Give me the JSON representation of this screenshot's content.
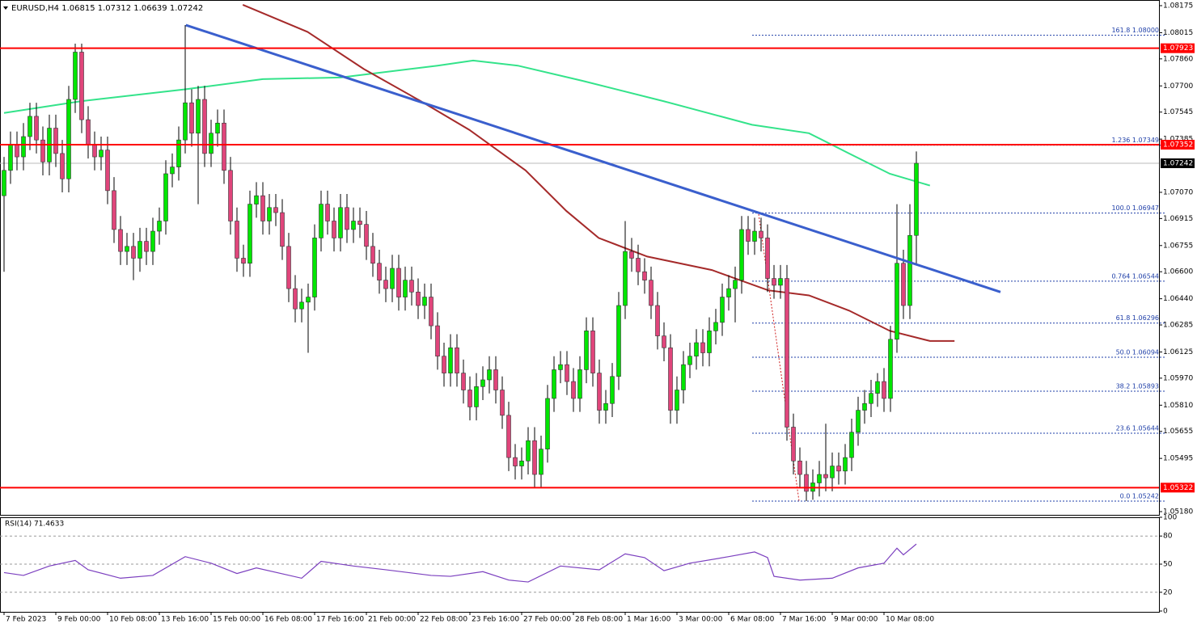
{
  "chart_data": [
    {
      "type": "candlestick",
      "title": "EURUSD,H4",
      "bull_color": "#00e600",
      "bear_color": "#e0457b",
      "wick_color": "#000000",
      "xlim": [
        -0.625,
        178.5
      ],
      "ylim": [
        1.0518,
        1.08175
      ],
      "yticks": [
        1.08175,
        1.08015,
        {
          "value": 1.0786,
          "label": "1.07860"
        },
        {
          "value": 1.077,
          "label": "1.07700"
        },
        1.07545,
        1.07385,
        {
          "value": 1.0707,
          "label": "1.07070"
        },
        1.06915,
        1.06755,
        {
          "value": 1.066,
          "label": "1.06600"
        },
        {
          "value": 1.0644,
          "label": "1.06440"
        },
        1.06285,
        1.06125,
        {
          "value": 1.0597,
          "label": "1.05970"
        },
        {
          "value": 1.0581,
          "label": "1.05810"
        },
        1.05655,
        1.05495,
        {
          "value": 1.0518,
          "label": "1.05180"
        }
      ],
      "xticks": [
        {
          "value": 0,
          "label": "7 Feb 2023"
        },
        {
          "value": 8,
          "label": "9 Feb 00:00"
        },
        {
          "value": 16,
          "label": "10 Feb 08:00"
        },
        {
          "value": 24,
          "label": "13 Feb 16:00"
        },
        {
          "value": 32,
          "label": "15 Feb 00:00"
        },
        {
          "value": 40,
          "label": "16 Feb 08:00"
        },
        {
          "value": 48,
          "label": "17 Feb 16:00"
        },
        {
          "value": 56,
          "label": "21 Feb 00:00"
        },
        {
          "value": 64,
          "label": "22 Feb 08:00"
        },
        {
          "value": 72,
          "label": "23 Feb 16:00"
        },
        {
          "value": 80,
          "label": "27 Feb 00:00"
        },
        {
          "value": 88,
          "label": "28 Feb 08:00"
        },
        {
          "value": 96,
          "label": "1 Mar 16:00"
        },
        {
          "value": 104,
          "label": "3 Mar 00:00"
        },
        {
          "value": 112,
          "label": "6 Mar 08:00"
        },
        {
          "value": 120,
          "label": "7 Mar 16:00"
        },
        {
          "value": 128,
          "label": "9 Mar 00:00"
        },
        {
          "value": 136,
          "label": "10 Mar 08:00"
        }
      ],
      "candles": [
        [
          1.0705,
          1.0728,
          1.066,
          1.072
        ],
        [
          1.072,
          1.0743,
          1.0712,
          1.0735
        ],
        [
          1.0735,
          1.0743,
          1.072,
          1.0728
        ],
        [
          1.0728,
          1.0748,
          1.072,
          1.074
        ],
        [
          1.074,
          1.076,
          1.0732,
          1.0752
        ],
        [
          1.0752,
          1.076,
          1.073,
          1.0738
        ],
        [
          1.0738,
          1.0746,
          1.0717,
          1.0725
        ],
        [
          1.0725,
          1.0753,
          1.0717,
          1.0745
        ],
        [
          1.0745,
          1.0753,
          1.0722,
          1.073
        ],
        [
          1.073,
          1.0738,
          1.0707,
          1.0715
        ],
        [
          1.0715,
          1.077,
          1.0707,
          1.0762
        ],
        [
          1.0762,
          1.0795,
          1.0754,
          1.079
        ],
        [
          1.079,
          1.0795,
          1.0742,
          1.075
        ],
        [
          1.075,
          1.0758,
          1.0727,
          1.0735
        ],
        [
          1.0735,
          1.0743,
          1.072,
          1.0728
        ],
        [
          1.0728,
          1.074,
          1.072,
          1.0732
        ],
        [
          1.0732,
          1.074,
          1.07,
          1.0708
        ],
        [
          1.0708,
          1.0716,
          1.0677,
          1.0685
        ],
        [
          1.0685,
          1.0693,
          1.0664,
          1.0672
        ],
        [
          1.0672,
          1.0683,
          1.0664,
          1.0675
        ],
        [
          1.0675,
          1.0683,
          1.0655,
          1.0668
        ],
        [
          1.0668,
          1.0686,
          1.066,
          1.0678
        ],
        [
          1.0678,
          1.0686,
          1.0664,
          1.0672
        ],
        [
          1.0672,
          1.0692,
          1.0664,
          1.0684
        ],
        [
          1.0684,
          1.0698,
          1.0676,
          1.069
        ],
        [
          1.069,
          1.0726,
          1.0682,
          1.0718
        ],
        [
          1.0718,
          1.073,
          1.071,
          1.0722
        ],
        [
          1.0722,
          1.0746,
          1.0714,
          1.0738
        ],
        [
          1.0738,
          1.0806,
          1.073,
          1.076
        ],
        [
          1.076,
          1.0768,
          1.0734,
          1.0742
        ],
        [
          1.0742,
          1.077,
          1.07,
          1.0762
        ],
        [
          1.0762,
          1.077,
          1.0722,
          1.073
        ],
        [
          1.073,
          1.075,
          1.0722,
          1.0742
        ],
        [
          1.0742,
          1.0756,
          1.0734,
          1.0748
        ],
        [
          1.0748,
          1.0756,
          1.0712,
          1.072
        ],
        [
          1.072,
          1.0728,
          1.0682,
          1.069
        ],
        [
          1.069,
          1.0698,
          1.066,
          1.0668
        ],
        [
          1.0668,
          1.0676,
          1.0657,
          1.0665
        ],
        [
          1.0665,
          1.0708,
          1.0657,
          1.07
        ],
        [
          1.07,
          1.0713,
          1.0692,
          1.0705
        ],
        [
          1.0705,
          1.0713,
          1.0682,
          1.069
        ],
        [
          1.069,
          1.0706,
          1.0682,
          1.0698
        ],
        [
          1.0698,
          1.0706,
          1.0687,
          1.0695
        ],
        [
          1.0695,
          1.0703,
          1.0667,
          1.0675
        ],
        [
          1.0675,
          1.0683,
          1.0642,
          1.065
        ],
        [
          1.065,
          1.0658,
          1.063,
          1.0638
        ],
        [
          1.0638,
          1.065,
          1.063,
          1.0642
        ],
        [
          1.0642,
          1.0653,
          1.0612,
          1.0645
        ],
        [
          1.0645,
          1.0688,
          1.0637,
          1.068
        ],
        [
          1.068,
          1.0708,
          1.0672,
          1.07
        ],
        [
          1.07,
          1.0708,
          1.0682,
          1.069
        ],
        [
          1.069,
          1.0698,
          1.0672,
          1.068
        ],
        [
          1.068,
          1.0706,
          1.0672,
          1.0698
        ],
        [
          1.0698,
          1.0706,
          1.0677,
          1.0685
        ],
        [
          1.0685,
          1.0698,
          1.0677,
          1.069
        ],
        [
          1.069,
          1.0698,
          1.068,
          1.0688
        ],
        [
          1.0688,
          1.0696,
          1.0667,
          1.0675
        ],
        [
          1.0675,
          1.0683,
          1.0657,
          1.0665
        ],
        [
          1.0665,
          1.0673,
          1.0647,
          1.0655
        ],
        [
          1.0655,
          1.0663,
          1.0642,
          1.065
        ],
        [
          1.065,
          1.067,
          1.0642,
          1.0662
        ],
        [
          1.0662,
          1.067,
          1.0637,
          1.0645
        ],
        [
          1.0645,
          1.0663,
          1.0637,
          1.0655
        ],
        [
          1.0655,
          1.0663,
          1.064,
          1.0648
        ],
        [
          1.0648,
          1.0656,
          1.0632,
          1.064
        ],
        [
          1.064,
          1.0653,
          1.0632,
          1.0645
        ],
        [
          1.0645,
          1.0653,
          1.062,
          1.0628
        ],
        [
          1.0628,
          1.0636,
          1.0602,
          1.061
        ],
        [
          1.061,
          1.0618,
          1.0592,
          1.06
        ],
        [
          1.06,
          1.0623,
          1.0592,
          1.0615
        ],
        [
          1.0615,
          1.0623,
          1.0592,
          1.06
        ],
        [
          1.06,
          1.0608,
          1.0582,
          1.059
        ],
        [
          1.059,
          1.0598,
          1.0572,
          1.058
        ],
        [
          1.058,
          1.06,
          1.0572,
          1.0592
        ],
        [
          1.0592,
          1.0604,
          1.0584,
          1.0596
        ],
        [
          1.0596,
          1.061,
          1.0588,
          1.0602
        ],
        [
          1.0602,
          1.061,
          1.0582,
          1.059
        ],
        [
          1.059,
          1.0598,
          1.0567,
          1.0575
        ],
        [
          1.0575,
          1.0583,
          1.0542,
          1.055
        ],
        [
          1.055,
          1.0558,
          1.0537,
          1.0545
        ],
        [
          1.0545,
          1.0556,
          1.0537,
          1.0548
        ],
        [
          1.0548,
          1.0568,
          1.054,
          1.056
        ],
        [
          1.056,
          1.0568,
          1.0532,
          1.054
        ],
        [
          1.054,
          1.0563,
          1.0532,
          1.0555
        ],
        [
          1.0555,
          1.0593,
          1.0547,
          1.0585
        ],
        [
          1.0585,
          1.061,
          1.0577,
          1.0602
        ],
        [
          1.0602,
          1.0613,
          1.0594,
          1.0605
        ],
        [
          1.0605,
          1.0613,
          1.0587,
          1.0595
        ],
        [
          1.0595,
          1.0603,
          1.0577,
          1.0585
        ],
        [
          1.0585,
          1.061,
          1.0577,
          1.0602
        ],
        [
          1.0602,
          1.0633,
          1.0594,
          1.0625
        ],
        [
          1.0625,
          1.0633,
          1.0592,
          1.06
        ],
        [
          1.06,
          1.0608,
          1.057,
          1.0578
        ],
        [
          1.0578,
          1.059,
          1.057,
          1.0582
        ],
        [
          1.0582,
          1.0606,
          1.0574,
          1.0598
        ],
        [
          1.0598,
          1.0648,
          1.059,
          1.064
        ],
        [
          1.064,
          1.069,
          1.0632,
          1.0672
        ],
        [
          1.0672,
          1.068,
          1.066,
          1.0668
        ],
        [
          1.0668,
          1.0676,
          1.0652,
          1.066
        ],
        [
          1.066,
          1.0668,
          1.0647,
          1.0655
        ],
        [
          1.0655,
          1.0663,
          1.0632,
          1.064
        ],
        [
          1.064,
          1.0648,
          1.0614,
          1.0622
        ],
        [
          1.0622,
          1.063,
          1.0607,
          1.0615
        ],
        [
          1.0615,
          1.0623,
          1.057,
          1.0578
        ],
        [
          1.0578,
          1.0598,
          1.057,
          1.059
        ],
        [
          1.059,
          1.0613,
          1.0582,
          1.0605
        ],
        [
          1.0605,
          1.0618,
          1.0597,
          1.061
        ],
        [
          1.061,
          1.0626,
          1.0602,
          1.0618
        ],
        [
          1.0618,
          1.0626,
          1.0604,
          1.0612
        ],
        [
          1.0612,
          1.0633,
          1.0604,
          1.0625
        ],
        [
          1.0625,
          1.0638,
          1.0617,
          1.063
        ],
        [
          1.063,
          1.0653,
          1.0622,
          1.0645
        ],
        [
          1.0645,
          1.0658,
          1.0637,
          1.065
        ],
        [
          1.065,
          1.0663,
          1.063,
          1.0655
        ],
        [
          1.0655,
          1.0693,
          1.0647,
          1.0685
        ],
        [
          1.0685,
          1.0693,
          1.067,
          1.0678
        ],
        [
          1.0678,
          1.0692,
          1.067,
          1.0684
        ],
        [
          1.0684,
          1.0692,
          1.0672,
          1.068
        ],
        [
          1.068,
          1.0688,
          1.0648,
          1.0656
        ],
        [
          1.0656,
          1.0664,
          1.0644,
          1.0652
        ],
        [
          1.0652,
          1.0664,
          1.0644,
          1.0656
        ],
        [
          1.0656,
          1.0664,
          1.056,
          1.0568
        ],
        [
          1.0568,
          1.0576,
          1.054,
          1.0548
        ],
        [
          1.0548,
          1.0556,
          1.0532,
          1.054
        ],
        [
          1.054,
          1.0548,
          1.05242,
          1.053
        ],
        [
          1.053,
          1.0543,
          1.0525,
          1.0535
        ],
        [
          1.0535,
          1.0548,
          1.0527,
          1.054
        ],
        [
          1.054,
          1.057,
          1.053,
          1.0538
        ],
        [
          1.0538,
          1.0553,
          1.053,
          1.0545
        ],
        [
          1.0545,
          1.0553,
          1.0534,
          1.0542
        ],
        [
          1.0542,
          1.0558,
          1.0534,
          1.055
        ],
        [
          1.055,
          1.0573,
          1.0542,
          1.0565
        ],
        [
          1.0565,
          1.0586,
          1.0557,
          1.0578
        ],
        [
          1.0578,
          1.059,
          1.057,
          1.0582
        ],
        [
          1.0582,
          1.0596,
          1.0574,
          1.0588
        ],
        [
          1.0588,
          1.06,
          1.058,
          1.0595
        ],
        [
          1.0595,
          1.0603,
          1.0577,
          1.0585
        ],
        [
          1.0585,
          1.0628,
          1.0577,
          1.062
        ],
        [
          1.062,
          1.07,
          1.0612,
          1.0665
        ],
        [
          1.0665,
          1.0673,
          1.0632,
          1.064
        ],
        [
          1.064,
          1.07,
          1.0632,
          1.06815
        ],
        [
          1.06815,
          1.07312,
          1.06639,
          1.07242
        ]
      ],
      "moving_averages": [
        {
          "color": "#33e38a",
          "x": [
            0,
            12,
            28,
            40,
            52,
            67,
            72.5,
            79.4,
            89.4,
            101.9,
            115.6,
            124.4,
            130.6,
            136.9,
            143.1
          ],
          "values": [
            1.0754,
            1.0761,
            1.0768,
            1.0774,
            1.0775,
            1.0782,
            1.0785,
            1.0782,
            1.0773,
            1.0761,
            1.0747,
            1.0742,
            1.073,
            1.0718,
            1.0711
          ]
        },
        {
          "color": "#a52a2a",
          "x": [
            36.9,
            46.9,
            55.6,
            64.4,
            71.9,
            80.6,
            86.9,
            91.9,
            99.4,
            109.4,
            118.1,
            124.4,
            130.6,
            136.9,
            143.1,
            146.9
          ],
          "values": [
            1.0818,
            1.0802,
            1.078,
            1.0761,
            1.0744,
            1.072,
            1.0696,
            1.068,
            1.0669,
            1.0661,
            1.0649,
            1.0646,
            1.0637,
            1.0625,
            1.0619,
            1.0619
          ]
        }
      ],
      "trendline": {
        "color": "#3a5fcd",
        "x": [
          28.1,
          154
        ],
        "values": [
          1.0806,
          1.0648
        ]
      },
      "levels": [
        1.07923,
        1.07352,
        1.05322
      ],
      "level_color": "#ff0000",
      "current_price": 1.07242,
      "fib_levels": [
        {
          "value": 1.08,
          "label": "161.8 1.08000"
        },
        {
          "value": 1.07349,
          "label": "1.236 1.07349"
        },
        {
          "value": 1.06947,
          "label": "100.0 1.06947"
        },
        {
          "value": 1.06544,
          "label": "0.764 1.06544"
        },
        {
          "value": 1.06296,
          "label": "61.8 1.06296"
        },
        {
          "value": 1.06094,
          "label": "50.0 1.06094"
        },
        {
          "value": 1.05893,
          "label": "38.2 1.05893"
        },
        {
          "value": 1.05644,
          "label": "23.6 1.05644"
        },
        {
          "value": 1.05242,
          "label": "0.0 1.05242"
        }
      ],
      "fib_color": "#1f3fa8"
    },
    {
      "type": "line",
      "title": "RSI(14) 71.4633",
      "color": "#7b3fbf",
      "xlim": [
        -0.625,
        178.5
      ],
      "ylim": [
        0,
        100
      ],
      "yticks": [
        100,
        80,
        50,
        20,
        0
      ],
      "x": [
        0,
        3,
        7,
        11,
        13,
        18,
        23,
        28,
        32,
        36,
        39,
        46,
        49,
        54,
        59,
        66,
        69,
        74,
        78,
        81,
        86,
        92,
        96,
        99,
        102,
        106,
        112,
        116,
        118,
        119,
        123,
        128,
        132,
        136,
        138,
        139,
        141
      ],
      "values": [
        41,
        38,
        48,
        54,
        44,
        35,
        38,
        58,
        51,
        40,
        46,
        35,
        53,
        48,
        44,
        38,
        37,
        42,
        33,
        31,
        48,
        44,
        61,
        57,
        43,
        51,
        58,
        63,
        57,
        37,
        33,
        35,
        46,
        51,
        67,
        60,
        71.4633
      ]
    }
  ]
}
